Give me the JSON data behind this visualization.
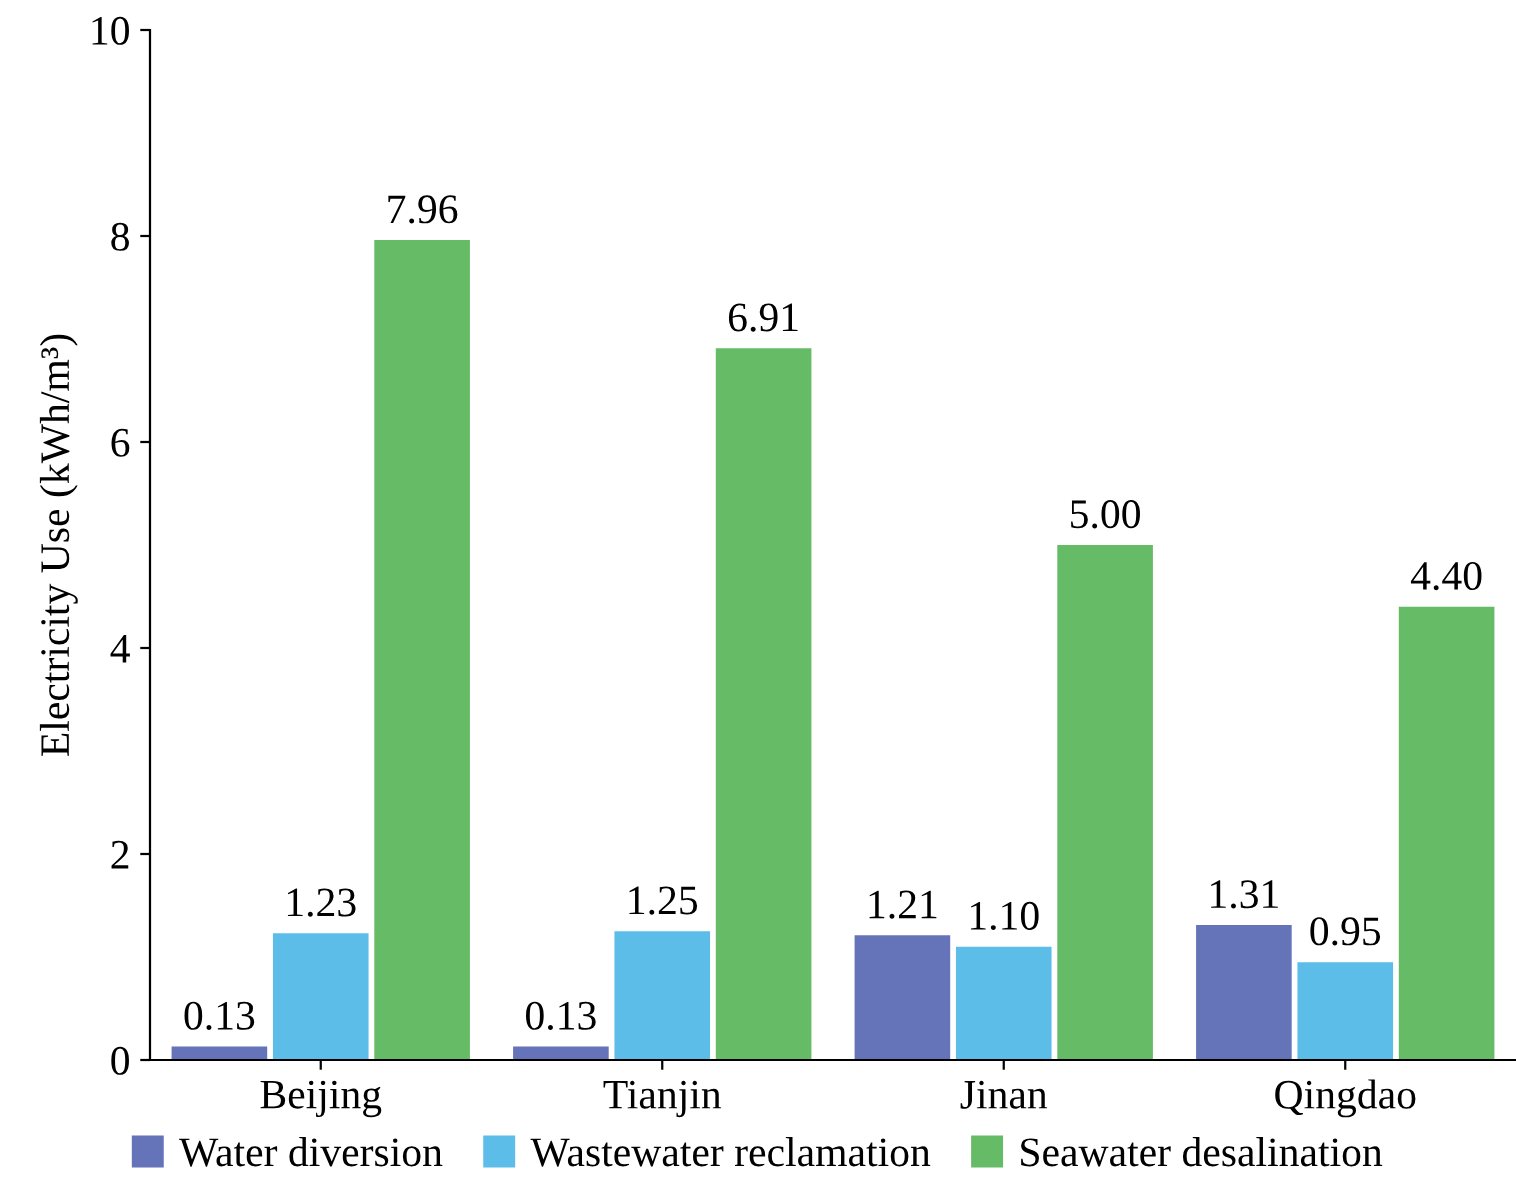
{
  "chart_data": {
    "type": "bar",
    "ylabel": "Electricity Use (kWh/m³)",
    "categories": [
      "Beijing",
      "Tianjin",
      "Jinan",
      "Qingdao"
    ],
    "series": [
      {
        "name": "Water diversion",
        "color": "#6573b9",
        "values": [
          0.13,
          0.13,
          1.21,
          1.31
        ],
        "value_labels": [
          "0.13",
          "0.13",
          "1.21",
          "1.31"
        ]
      },
      {
        "name": "Wastewater reclamation",
        "color": "#5dbde9",
        "values": [
          1.23,
          1.25,
          1.1,
          0.95
        ],
        "value_labels": [
          "1.23",
          "1.25",
          "1.10",
          "0.95"
        ]
      },
      {
        "name": "Seawater desalination",
        "color": "#66bb66",
        "values": [
          7.96,
          6.91,
          5.0,
          4.4
        ],
        "value_labels": [
          "7.96",
          "6.91",
          "5.00",
          "4.40"
        ]
      }
    ],
    "ylim": [
      0,
      10
    ],
    "yticks": [
      0,
      2,
      4,
      6,
      8,
      10
    ],
    "grid": false,
    "legend": "bottom"
  }
}
